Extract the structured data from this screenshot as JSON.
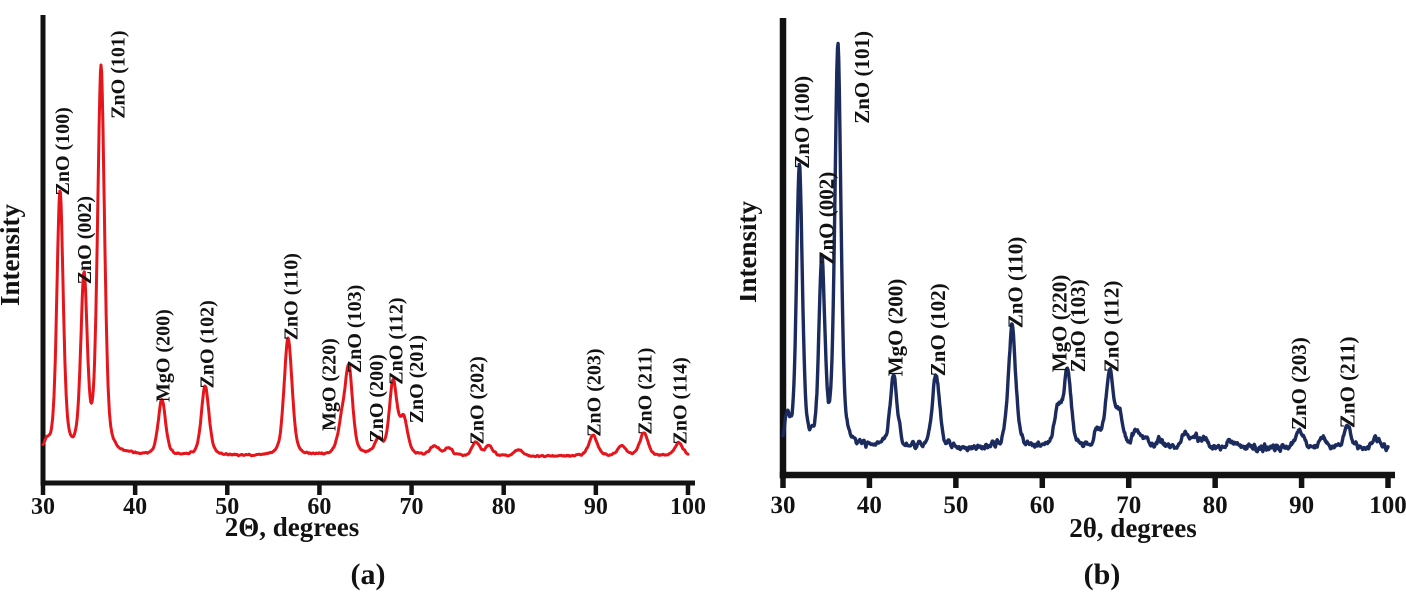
{
  "figure": {
    "background": "#ffffff",
    "axis_color": "#121212",
    "text_color": "#121212"
  },
  "chart_data": [
    {
      "id": "a",
      "type": "line",
      "caption": "(a)",
      "xlabel": "2Θ, degrees",
      "ylabel": "Intensity",
      "xlim": [
        30,
        100
      ],
      "x_ticks": [
        30,
        40,
        50,
        60,
        70,
        80,
        90,
        100
      ],
      "y_units": "arbitrary (relative, ZnO(101) = 100)",
      "color": "#e6151b",
      "baseline_intensity": 2.5,
      "peaks": [
        {
          "two_theta": 30.4,
          "intensity": 2.5,
          "hwhm": 0.4
        },
        {
          "two_theta": 31.85,
          "intensity": 68,
          "hwhm": 0.42,
          "label": "ZnO (100)",
          "label_x": 32.0
        },
        {
          "two_theta": 34.45,
          "intensity": 45,
          "hwhm": 0.42,
          "label": "ZnO (002)",
          "label_x": 34.4
        },
        {
          "two_theta": 36.3,
          "intensity": 100,
          "hwhm": 0.45,
          "label": "ZnO (101)",
          "label_x": 38.0
        },
        {
          "two_theta": 42.9,
          "intensity": 14.5,
          "hwhm": 0.48,
          "label": "MgO (200)",
          "label_x": 42.9
        },
        {
          "two_theta": 47.6,
          "intensity": 18,
          "hwhm": 0.5,
          "label": "ZnO (102)",
          "label_x": 47.7
        },
        {
          "two_theta": 56.6,
          "intensity": 30.5,
          "hwhm": 0.52,
          "label": "ZnO (110)",
          "label_x": 56.8
        },
        {
          "two_theta": 62.4,
          "intensity": 7,
          "hwhm": 0.5,
          "label": "MgO (220)",
          "label_x": 60.9
        },
        {
          "two_theta": 63.2,
          "intensity": 22,
          "hwhm": 0.5,
          "label": "ZnO (103)",
          "label_x": 63.7
        },
        {
          "two_theta": 66.4,
          "intensity": 4,
          "hwhm": 0.5,
          "label": "ZnO (200)",
          "label_x": 66.1
        },
        {
          "two_theta": 68.0,
          "intensity": 19,
          "hwhm": 0.5,
          "label": "ZnO (112)",
          "label_x": 68.2
        },
        {
          "two_theta": 69.15,
          "intensity": 9,
          "hwhm": 0.5,
          "label": "ZnO (201)",
          "label_x": 70.4
        },
        {
          "two_theta": 72.5,
          "intensity": 2.5,
          "hwhm": 0.55
        },
        {
          "two_theta": 74.0,
          "intensity": 2,
          "hwhm": 0.5
        },
        {
          "two_theta": 77.0,
          "intensity": 3.5,
          "hwhm": 0.5,
          "label": "ZnO (202)",
          "label_x": 77.0
        },
        {
          "two_theta": 78.4,
          "intensity": 2.5,
          "hwhm": 0.5
        },
        {
          "two_theta": 81.6,
          "intensity": 1.5,
          "hwhm": 0.55
        },
        {
          "two_theta": 89.7,
          "intensity": 5.5,
          "hwhm": 0.55,
          "label": "ZnO (203)",
          "label_x": 89.7
        },
        {
          "two_theta": 92.8,
          "intensity": 2.5,
          "hwhm": 0.55
        },
        {
          "two_theta": 95.2,
          "intensity": 6,
          "hwhm": 0.55,
          "label": "ZnO (211)",
          "label_x": 95.2
        },
        {
          "two_theta": 99.0,
          "intensity": 3.5,
          "hwhm": 0.55,
          "label": "ZnO (114)",
          "label_x": 99.0
        }
      ]
    },
    {
      "id": "b",
      "type": "line",
      "caption": "(b)",
      "xlabel": "2θ, degrees",
      "ylabel": "Intensity",
      "xlim": [
        30,
        100
      ],
      "x_ticks": [
        30,
        40,
        50,
        60,
        70,
        80,
        90,
        100
      ],
      "y_units": "arbitrary (relative, ZnO(101) = 100)",
      "color": "#1c2b5e",
      "baseline_intensity": 2,
      "peaks": [
        {
          "two_theta": 30.5,
          "intensity": 7,
          "hwhm": 0.35
        },
        {
          "two_theta": 31.9,
          "intensity": 70,
          "hwhm": 0.4,
          "label": "ZnO (100)",
          "label_x": 32.1
        },
        {
          "two_theta": 34.5,
          "intensity": 46,
          "hwhm": 0.4,
          "label": "ZnO (002)",
          "label_x": 34.9
        },
        {
          "two_theta": 36.35,
          "intensity": 100,
          "hwhm": 0.42,
          "label": "ZnO (101)",
          "label_x": 39.0
        },
        {
          "two_theta": 42.8,
          "intensity": 18,
          "hwhm": 0.5,
          "label": "MgO (200)",
          "label_x": 42.9
        },
        {
          "two_theta": 47.7,
          "intensity": 18,
          "hwhm": 0.5,
          "label": "ZnO (102)",
          "label_x": 47.8
        },
        {
          "two_theta": 56.5,
          "intensity": 30,
          "hwhm": 0.52,
          "label": "ZnO (110)",
          "label_x": 56.8
        },
        {
          "two_theta": 61.8,
          "intensity": 9,
          "hwhm": 0.5,
          "label": "MgO (220)",
          "label_x": 61.9,
          "label_anchor_intensity": 19
        },
        {
          "two_theta": 62.9,
          "intensity": 19,
          "hwhm": 0.5,
          "label": "ZnO (103)",
          "label_x": 64.0
        },
        {
          "two_theta": 66.4,
          "intensity": 4,
          "hwhm": 0.5
        },
        {
          "two_theta": 67.8,
          "intensity": 19,
          "hwhm": 0.5,
          "label": "ZnO (112)",
          "label_x": 67.9
        },
        {
          "two_theta": 68.9,
          "intensity": 8,
          "hwhm": 0.5
        },
        {
          "two_theta": 70.9,
          "intensity": 3.5,
          "hwhm": 0.5
        },
        {
          "two_theta": 71.9,
          "intensity": 2,
          "hwhm": 0.5
        },
        {
          "two_theta": 73.6,
          "intensity": 2,
          "hwhm": 0.5
        },
        {
          "two_theta": 76.5,
          "intensity": 3,
          "hwhm": 0.5
        },
        {
          "two_theta": 77.7,
          "intensity": 2.5,
          "hwhm": 0.5
        },
        {
          "two_theta": 78.7,
          "intensity": 2,
          "hwhm": 0.5
        },
        {
          "two_theta": 82.0,
          "intensity": 1.5,
          "hwhm": 0.6
        },
        {
          "two_theta": 89.8,
          "intensity": 4.5,
          "hwhm": 0.55,
          "label": "ZnO (203)",
          "label_x": 89.6
        },
        {
          "two_theta": 92.5,
          "intensity": 2,
          "hwhm": 0.5
        },
        {
          "two_theta": 95.3,
          "intensity": 5,
          "hwhm": 0.55,
          "label": "ZnO (211)",
          "label_x": 95.2
        },
        {
          "two_theta": 98.6,
          "intensity": 2.5,
          "hwhm": 0.5
        }
      ]
    }
  ]
}
